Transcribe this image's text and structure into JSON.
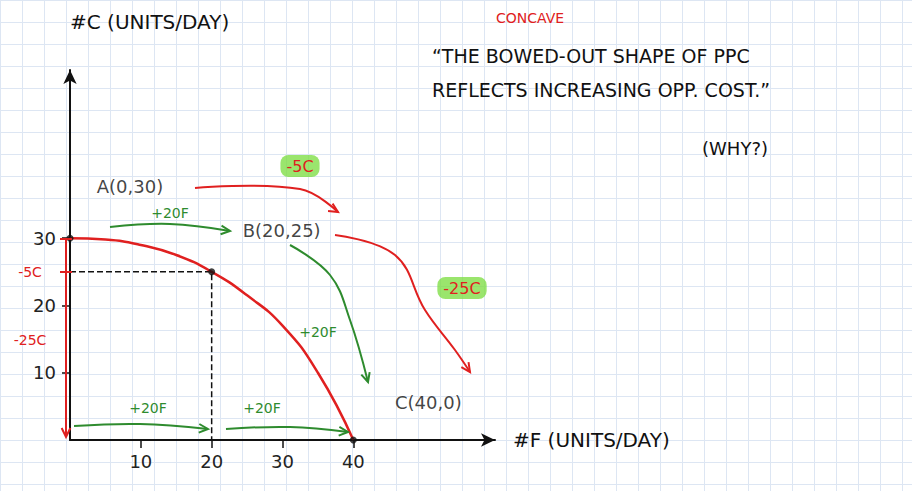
{
  "chart_data": {
    "type": "line",
    "x_label": "#F (UNITS/DAY)",
    "y_label": "#C (UNITS/DAY)",
    "xlim": [
      0,
      60
    ],
    "xticks": [
      10,
      20,
      30,
      40
    ],
    "ylim": [
      0,
      55
    ],
    "yticks": [
      10,
      20,
      30
    ],
    "series": [
      {
        "color": "#e02020",
        "x": [
          0,
          5,
          10,
          15,
          20,
          25,
          30,
          35,
          40
        ],
        "values": [
          30,
          29.8,
          29,
          27.5,
          25,
          21.5,
          17,
          10,
          0
        ]
      }
    ],
    "points": [
      {
        "label": "A(0,30)",
        "x": 0,
        "y": 30
      },
      {
        "label": "B(20,25)",
        "x": 20,
        "y": 25
      },
      {
        "label": "C(40,0)",
        "x": 40,
        "y": 0
      }
    ],
    "annotations": [
      {
        "text": "CONCAVE",
        "color": "#e02020"
      },
      {
        "text": "“THE BOWED-OUT SHAPE OF PPC",
        "color": "#111111"
      },
      {
        "text": "REFLECTS INCREASING OPP. COST.”",
        "color": "#111111"
      },
      {
        "text": "(WHY?)",
        "color": "#111111"
      },
      {
        "text": "-5C",
        "color": "#e02020"
      },
      {
        "text": "-25C",
        "color": "#e02020"
      },
      {
        "text": "+20F",
        "color": "#2e8b2e"
      },
      {
        "text": "+20F",
        "color": "#2e8b2e"
      },
      {
        "text": "+20F",
        "color": "#2e8b2e"
      },
      {
        "text": "+20F",
        "color": "#2e8b2e"
      },
      {
        "text": "-5C",
        "color": "#e02020"
      },
      {
        "text": "-25C",
        "color": "#e02020"
      }
    ]
  }
}
